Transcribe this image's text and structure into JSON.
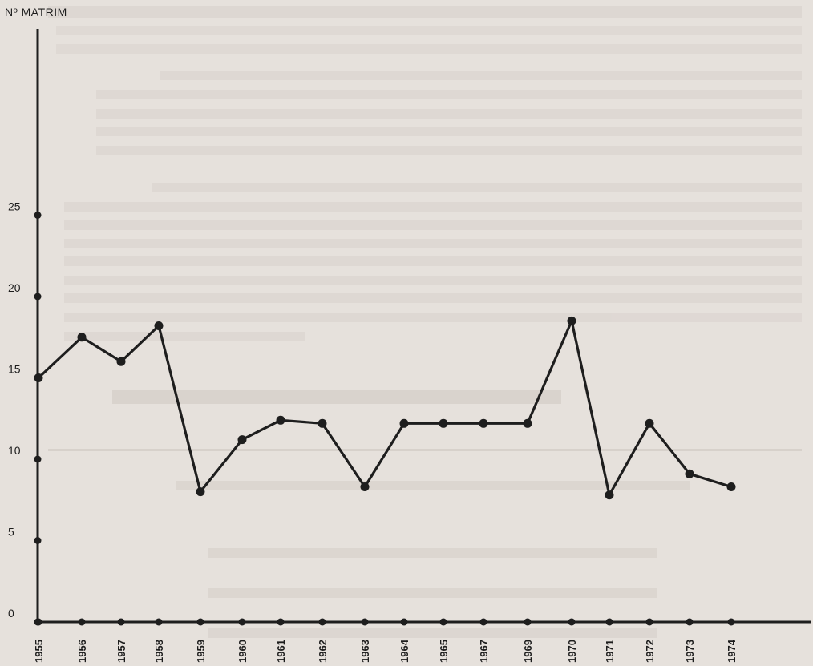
{
  "chart_data": {
    "type": "line",
    "title": "",
    "ylabel": "Nº  MATRIM",
    "xlabel": "",
    "ylim": [
      0,
      30
    ],
    "yticks": [
      0,
      5,
      10,
      15,
      20,
      25
    ],
    "grid": false,
    "legend": "none",
    "categories": [
      "1955",
      "1956",
      "1957",
      "1958",
      "1959",
      "1960",
      "1961",
      "1962",
      "1963",
      "1964",
      "1965",
      "1967",
      "1969",
      "1970",
      "1971",
      "1972",
      "1973",
      "1974"
    ],
    "series": [
      {
        "values": [
          15,
          17.5,
          16,
          18.2,
          8,
          11.2,
          12.4,
          12.2,
          8.3,
          12.2,
          12.2,
          12.2,
          12.2,
          18.5,
          7.8,
          12.2,
          9.1,
          8.3
        ]
      }
    ],
    "colors": {
      "line": "#1e1e1e",
      "background": "#e6e1dc"
    }
  }
}
